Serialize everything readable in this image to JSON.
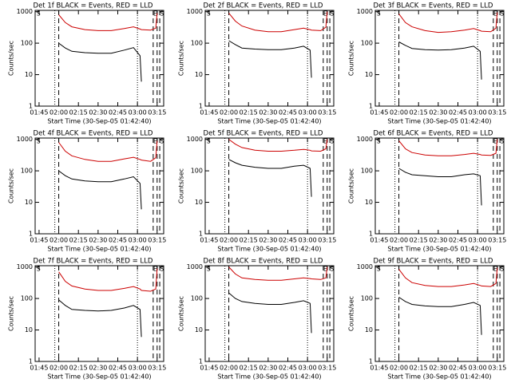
{
  "chart_data": [
    {
      "type": "line",
      "title": "Det 1f BLACK = Events, RED = LLD",
      "xlabel": "Start Time (30-Sep-05 01:42:40)",
      "ylabel": "Counts/sec",
      "xlim": [
        "01:42",
        "03:20"
      ],
      "xticks": [
        "01:45",
        "02:00",
        "02:15",
        "02:30",
        "02:45",
        "03:00",
        "03:15"
      ],
      "ylim": [
        1,
        1100
      ],
      "yticks": [
        1,
        10,
        100,
        1000
      ],
      "log_y": true,
      "x": [
        "02:00",
        "02:05",
        "02:10",
        "02:20",
        "02:30",
        "02:40",
        "02:50",
        "02:57",
        "03:02",
        "03:03",
        "03:10",
        "03:14",
        "03:15"
      ],
      "series": [
        {
          "color": "#000000",
          "values": [
            100,
            70,
            55,
            50,
            48,
            48,
            60,
            72,
            40,
            6,
            null,
            null,
            null
          ]
        },
        {
          "color": "#cc0000",
          "values": [
            800,
            450,
            330,
            270,
            250,
            250,
            290,
            330,
            280,
            270,
            260,
            300,
            900
          ]
        }
      ],
      "vlines": [
        {
          "x": "01:57",
          "style": "dotted"
        },
        {
          "x": "02:00",
          "style": "dashed"
        },
        {
          "x": "03:00",
          "style": "dotted"
        },
        {
          "x": "03:12",
          "style": "dashed"
        },
        {
          "x": "03:15",
          "style": "dashed"
        },
        {
          "x": "03:17",
          "style": "dashed"
        }
      ],
      "annotations": [
        {
          "text": "S",
          "x": "01:43"
        },
        {
          "text": "E",
          "x": "03:12"
        },
        {
          "text": "S",
          "x": "03:17"
        }
      ]
    },
    {
      "type": "line",
      "title": "Det 2f BLACK = Events, RED = LLD",
      "xlabel": "Start Time (30-Sep-05 01:42:40)",
      "ylabel": "Counts/sec",
      "xlim": [
        "01:42",
        "03:20"
      ],
      "xticks": [
        "01:45",
        "02:00",
        "02:15",
        "02:30",
        "02:45",
        "03:00",
        "03:15"
      ],
      "ylim": [
        1,
        1100
      ],
      "yticks": [
        1,
        10,
        100,
        1000
      ],
      "log_y": true,
      "x": [
        "02:00",
        "02:05",
        "02:10",
        "02:20",
        "02:30",
        "02:40",
        "02:50",
        "02:57",
        "03:02",
        "03:03",
        "03:10",
        "03:14",
        "03:15"
      ],
      "series": [
        {
          "color": "#000000",
          "values": [
            120,
            90,
            70,
            65,
            62,
            62,
            70,
            80,
            60,
            8,
            null,
            null,
            null
          ]
        },
        {
          "color": "#cc0000",
          "values": [
            900,
            500,
            350,
            260,
            230,
            230,
            270,
            300,
            270,
            260,
            250,
            320,
            1000
          ]
        }
      ],
      "vlines": [
        {
          "x": "01:57",
          "style": "dotted"
        },
        {
          "x": "02:00",
          "style": "dashed"
        },
        {
          "x": "03:00",
          "style": "dotted"
        },
        {
          "x": "03:12",
          "style": "dashed"
        },
        {
          "x": "03:15",
          "style": "dashed"
        },
        {
          "x": "03:17",
          "style": "dashed"
        }
      ],
      "annotations": [
        {
          "text": "S",
          "x": "01:43"
        },
        {
          "text": "E",
          "x": "03:12"
        },
        {
          "text": "S",
          "x": "03:17"
        }
      ]
    },
    {
      "type": "line",
      "title": "Det 3f BLACK = Events, RED = LLD",
      "xlabel": "Start Time (30-Sep-05 01:42:40)",
      "ylabel": "Counts/sec",
      "xlim": [
        "01:42",
        "03:20"
      ],
      "xticks": [
        "01:45",
        "02:00",
        "02:15",
        "02:30",
        "02:45",
        "03:00",
        "03:15"
      ],
      "ylim": [
        1,
        1100
      ],
      "yticks": [
        1,
        10,
        100,
        1000
      ],
      "log_y": true,
      "x": [
        "02:00",
        "02:05",
        "02:10",
        "02:20",
        "02:30",
        "02:40",
        "02:50",
        "02:57",
        "03:02",
        "03:03",
        "03:10",
        "03:14",
        "03:15"
      ],
      "series": [
        {
          "color": "#000000",
          "values": [
            110,
            85,
            68,
            62,
            60,
            62,
            70,
            80,
            55,
            7,
            null,
            null,
            null
          ]
        },
        {
          "color": "#cc0000",
          "values": [
            850,
            450,
            330,
            250,
            220,
            230,
            260,
            290,
            250,
            240,
            230,
            300,
            950
          ]
        }
      ],
      "vlines": [
        {
          "x": "01:57",
          "style": "dotted"
        },
        {
          "x": "02:00",
          "style": "dashed"
        },
        {
          "x": "03:00",
          "style": "dotted"
        },
        {
          "x": "03:12",
          "style": "dashed"
        },
        {
          "x": "03:15",
          "style": "dashed"
        },
        {
          "x": "03:17",
          "style": "dashed"
        }
      ],
      "annotations": [
        {
          "text": "S",
          "x": "01:43"
        },
        {
          "text": "E",
          "x": "03:12"
        },
        {
          "text": "S",
          "x": "03:17"
        }
      ]
    },
    {
      "type": "line",
      "title": "Det 4f BLACK = Events, RED = LLD",
      "xlabel": "Start Time (30-Sep-05 01:42:40)",
      "ylabel": "Counts/sec",
      "xlim": [
        "01:42",
        "03:20"
      ],
      "xticks": [
        "01:45",
        "02:00",
        "02:15",
        "02:30",
        "02:45",
        "03:00",
        "03:15"
      ],
      "ylim": [
        1,
        1100
      ],
      "yticks": [
        1,
        10,
        100,
        1000
      ],
      "log_y": true,
      "x": [
        "02:00",
        "02:05",
        "02:10",
        "02:20",
        "02:30",
        "02:40",
        "02:50",
        "02:57",
        "03:02",
        "03:03",
        "03:10",
        "03:14",
        "03:15"
      ],
      "series": [
        {
          "color": "#000000",
          "values": [
            100,
            70,
            55,
            48,
            45,
            45,
            55,
            65,
            40,
            6,
            null,
            null,
            null
          ]
        },
        {
          "color": "#cc0000",
          "values": [
            800,
            420,
            300,
            230,
            200,
            200,
            240,
            270,
            230,
            220,
            200,
            260,
            900
          ]
        }
      ],
      "vlines": [
        {
          "x": "01:57",
          "style": "dotted"
        },
        {
          "x": "02:00",
          "style": "dashed"
        },
        {
          "x": "03:00",
          "style": "dotted"
        },
        {
          "x": "03:12",
          "style": "dashed"
        },
        {
          "x": "03:15",
          "style": "dashed"
        },
        {
          "x": "03:17",
          "style": "dashed"
        }
      ],
      "annotations": [
        {
          "text": "S",
          "x": "01:43"
        },
        {
          "text": "E",
          "x": "03:12"
        },
        {
          "text": "S",
          "x": "03:17"
        }
      ]
    },
    {
      "type": "line",
      "title": "Det 5f BLACK = Events, RED = LLD",
      "xlabel": "Start Time (30-Sep-05 01:42:40)",
      "ylabel": "Counts/sec",
      "xlim": [
        "01:42",
        "03:20"
      ],
      "xticks": [
        "01:45",
        "02:00",
        "02:15",
        "02:30",
        "02:45",
        "03:00",
        "03:15"
      ],
      "ylim": [
        1,
        1100
      ],
      "yticks": [
        1,
        10,
        100,
        1000
      ],
      "log_y": true,
      "x": [
        "02:00",
        "02:05",
        "02:10",
        "02:20",
        "02:30",
        "02:40",
        "02:50",
        "02:57",
        "03:02",
        "03:03",
        "03:10",
        "03:14",
        "03:15"
      ],
      "series": [
        {
          "color": "#000000",
          "values": [
            230,
            180,
            150,
            130,
            120,
            120,
            140,
            150,
            120,
            15,
            null,
            null,
            null
          ]
        },
        {
          "color": "#cc0000",
          "values": [
            1000,
            700,
            550,
            450,
            420,
            420,
            450,
            480,
            450,
            430,
            420,
            500,
            1000
          ]
        }
      ],
      "vlines": [
        {
          "x": "01:57",
          "style": "dotted"
        },
        {
          "x": "02:00",
          "style": "dashed"
        },
        {
          "x": "03:00",
          "style": "dotted"
        },
        {
          "x": "03:12",
          "style": "dashed"
        },
        {
          "x": "03:15",
          "style": "dashed"
        },
        {
          "x": "03:17",
          "style": "dashed"
        }
      ],
      "annotations": [
        {
          "text": "S",
          "x": "01:43"
        },
        {
          "text": "E",
          "x": "03:12"
        },
        {
          "text": "S",
          "x": "03:17"
        }
      ]
    },
    {
      "type": "line",
      "title": "Det 6f BLACK = Events, RED = LLD",
      "xlabel": "Start Time (30-Sep-05 01:42:40)",
      "ylabel": "Counts/sec",
      "xlim": [
        "01:42",
        "03:20"
      ],
      "xticks": [
        "01:45",
        "02:00",
        "02:15",
        "02:30",
        "02:45",
        "03:00",
        "03:15"
      ],
      "ylim": [
        1,
        1100
      ],
      "yticks": [
        1,
        10,
        100,
        1000
      ],
      "log_y": true,
      "x": [
        "02:00",
        "02:05",
        "02:10",
        "02:20",
        "02:30",
        "02:40",
        "02:50",
        "02:57",
        "03:02",
        "03:03",
        "03:10",
        "03:14",
        "03:15"
      ],
      "series": [
        {
          "color": "#000000",
          "values": [
            120,
            90,
            75,
            70,
            65,
            65,
            75,
            80,
            70,
            8,
            null,
            null,
            null
          ]
        },
        {
          "color": "#cc0000",
          "values": [
            900,
            500,
            380,
            320,
            300,
            300,
            330,
            360,
            330,
            320,
            310,
            360,
            1000
          ]
        }
      ],
      "vlines": [
        {
          "x": "01:57",
          "style": "dotted"
        },
        {
          "x": "02:00",
          "style": "dashed"
        },
        {
          "x": "03:00",
          "style": "dotted"
        },
        {
          "x": "03:12",
          "style": "dashed"
        },
        {
          "x": "03:15",
          "style": "dashed"
        },
        {
          "x": "03:17",
          "style": "dashed"
        }
      ],
      "annotations": [
        {
          "text": "S",
          "x": "01:43"
        },
        {
          "text": "E",
          "x": "03:12"
        },
        {
          "text": "S",
          "x": "03:17"
        }
      ]
    },
    {
      "type": "line",
      "title": "Det 7f BLACK = Events, RED = LLD",
      "xlabel": "Start Time (30-Sep-05 01:42:40)",
      "ylabel": "Counts/sec",
      "xlim": [
        "01:42",
        "03:20"
      ],
      "xticks": [
        "01:45",
        "02:00",
        "02:15",
        "02:30",
        "02:45",
        "03:00",
        "03:15"
      ],
      "ylim": [
        1,
        1100
      ],
      "yticks": [
        1,
        10,
        100,
        1000
      ],
      "log_y": true,
      "x": [
        "02:00",
        "02:05",
        "02:10",
        "02:20",
        "02:30",
        "02:40",
        "02:50",
        "02:57",
        "03:02",
        "03:03",
        "03:10",
        "03:14",
        "03:15"
      ],
      "series": [
        {
          "color": "#000000",
          "values": [
            90,
            60,
            45,
            42,
            40,
            42,
            50,
            60,
            45,
            6,
            null,
            null,
            null
          ]
        },
        {
          "color": "#cc0000",
          "values": [
            700,
            350,
            250,
            200,
            180,
            180,
            210,
            240,
            200,
            180,
            170,
            200,
            900
          ]
        }
      ],
      "vlines": [
        {
          "x": "01:57",
          "style": "dotted"
        },
        {
          "x": "02:00",
          "style": "dashed"
        },
        {
          "x": "03:00",
          "style": "dotted"
        },
        {
          "x": "03:12",
          "style": "dashed"
        },
        {
          "x": "03:15",
          "style": "dashed"
        },
        {
          "x": "03:17",
          "style": "dashed"
        }
      ],
      "annotations": [
        {
          "text": "S",
          "x": "01:43"
        },
        {
          "text": "E",
          "x": "03:12"
        },
        {
          "text": "S",
          "x": "03:17"
        }
      ]
    },
    {
      "type": "line",
      "title": "Det 8f BLACK = Events, RED = LLD",
      "xlabel": "Start Time (30-Sep-05 01:42:40)",
      "ylabel": "Counts/sec",
      "xlim": [
        "01:42",
        "03:20"
      ],
      "xticks": [
        "01:45",
        "02:00",
        "02:15",
        "02:30",
        "02:45",
        "03:00",
        "03:15"
      ],
      "ylim": [
        1,
        1100
      ],
      "yticks": [
        1,
        10,
        100,
        1000
      ],
      "log_y": true,
      "x": [
        "02:00",
        "02:05",
        "02:10",
        "02:20",
        "02:30",
        "02:40",
        "02:50",
        "02:57",
        "03:02",
        "03:03",
        "03:10",
        "03:14",
        "03:15"
      ],
      "series": [
        {
          "color": "#000000",
          "values": [
            150,
            100,
            80,
            70,
            65,
            65,
            75,
            85,
            70,
            8,
            null,
            null,
            null
          ]
        },
        {
          "color": "#cc0000",
          "values": [
            1000,
            600,
            450,
            400,
            380,
            380,
            420,
            450,
            430,
            420,
            400,
            450,
            1000
          ]
        }
      ],
      "vlines": [
        {
          "x": "01:57",
          "style": "dotted"
        },
        {
          "x": "02:00",
          "style": "dashed"
        },
        {
          "x": "03:00",
          "style": "dotted"
        },
        {
          "x": "03:12",
          "style": "dashed"
        },
        {
          "x": "03:15",
          "style": "dashed"
        },
        {
          "x": "03:17",
          "style": "dashed"
        }
      ],
      "annotations": [
        {
          "text": "S",
          "x": "01:43"
        },
        {
          "text": "E",
          "x": "03:12"
        },
        {
          "text": "S",
          "x": "03:17"
        }
      ]
    },
    {
      "type": "line",
      "title": "Det 9f BLACK = Events, RED = LLD",
      "xlabel": "Start Time (30-Sep-05 01:42:40)",
      "ylabel": "Counts/sec",
      "xlim": [
        "01:42",
        "03:20"
      ],
      "xticks": [
        "01:45",
        "02:00",
        "02:15",
        "02:30",
        "02:45",
        "03:00",
        "03:15"
      ],
      "ylim": [
        1,
        1100
      ],
      "yticks": [
        1,
        10,
        100,
        1000
      ],
      "log_y": true,
      "x": [
        "02:00",
        "02:05",
        "02:10",
        "02:20",
        "02:30",
        "02:40",
        "02:50",
        "02:57",
        "03:02",
        "03:03",
        "03:10",
        "03:14",
        "03:15"
      ],
      "series": [
        {
          "color": "#000000",
          "values": [
            110,
            80,
            65,
            58,
            55,
            55,
            65,
            75,
            60,
            7,
            null,
            null,
            null
          ]
        },
        {
          "color": "#cc0000",
          "values": [
            850,
            450,
            320,
            260,
            240,
            240,
            270,
            300,
            260,
            250,
            240,
            300,
            950
          ]
        }
      ],
      "vlines": [
        {
          "x": "01:57",
          "style": "dotted"
        },
        {
          "x": "02:00",
          "style": "dashed"
        },
        {
          "x": "03:00",
          "style": "dotted"
        },
        {
          "x": "03:12",
          "style": "dashed"
        },
        {
          "x": "03:15",
          "style": "dashed"
        },
        {
          "x": "03:17",
          "style": "dashed"
        }
      ],
      "annotations": [
        {
          "text": "S",
          "x": "01:43"
        },
        {
          "text": "E",
          "x": "03:12"
        },
        {
          "text": "S",
          "x": "03:17"
        }
      ]
    }
  ]
}
